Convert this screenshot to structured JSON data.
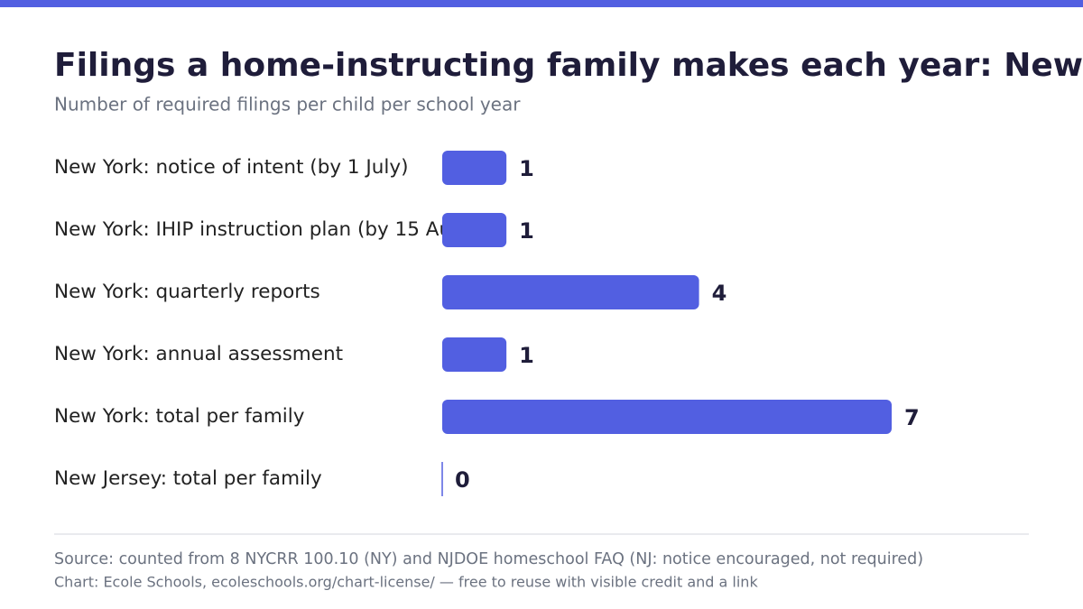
{
  "chart_data": {
    "type": "bar",
    "orientation": "horizontal",
    "title": "Filings a home-instructing family makes each year: New York",
    "subtitle": "Number of required filings per child per school year",
    "categories": [
      "New York: notice of intent (by 1 July)",
      "New York: IHIP instruction plan (by 15 Au",
      "New York: quarterly reports",
      "New York: annual assessment",
      "New York: total per family",
      "New Jersey: total per family"
    ],
    "values": [
      1,
      1,
      4,
      1,
      7,
      0
    ],
    "color": "#525fe1",
    "source": "Source: counted from 8 NYCRR 100.10 (NY) and NJDOE homeschool FAQ (NJ: notice encouraged, not required)",
    "credit": "Chart: Ecole Schools, ecoleschools.org/chart-license/ — free to reuse with visible credit and a link"
  }
}
